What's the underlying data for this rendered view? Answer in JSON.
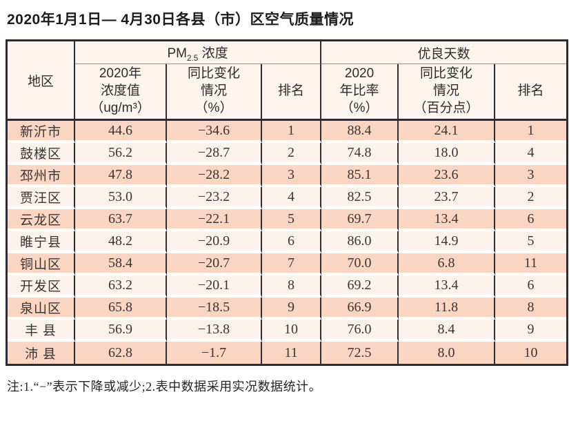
{
  "title": "2020年1月1日— 4月30日各县（市）区空气质量情况",
  "table": {
    "header": {
      "region": "地区",
      "pm_group": {
        "prefix": "PM",
        "subscript": "2.5",
        "suffix": " 浓度"
      },
      "good_group": "优良天数",
      "subheaders": {
        "pm_value": "2020年\n浓度值\n（ug/m³）",
        "pm_change": "同比变化\n情况\n（%）",
        "pm_rank": "排名",
        "good_ratio": "2020\n年比率\n（%）",
        "good_change": "同比变化\n情况\n（百分点）",
        "good_rank": "排名"
      }
    },
    "rows": [
      {
        "region": "新沂市",
        "pm_value": "44.6",
        "pm_change": "−34.6",
        "pm_rank": "1",
        "good_ratio": "88.4",
        "good_change": "24.1",
        "good_rank": "1"
      },
      {
        "region": "鼓楼区",
        "pm_value": "56.2",
        "pm_change": "−28.7",
        "pm_rank": "2",
        "good_ratio": "74.8",
        "good_change": "18.0",
        "good_rank": "4"
      },
      {
        "region": "邳州市",
        "pm_value": "47.8",
        "pm_change": "−28.2",
        "pm_rank": "3",
        "good_ratio": "85.1",
        "good_change": "23.6",
        "good_rank": "3"
      },
      {
        "region": "贾汪区",
        "pm_value": "53.0",
        "pm_change": "−23.2",
        "pm_rank": "4",
        "good_ratio": "82.5",
        "good_change": "23.7",
        "good_rank": "2"
      },
      {
        "region": "云龙区",
        "pm_value": "63.7",
        "pm_change": "−22.1",
        "pm_rank": "5",
        "good_ratio": "69.7",
        "good_change": "13.4",
        "good_rank": "6"
      },
      {
        "region": "睢宁县",
        "pm_value": "48.2",
        "pm_change": "−20.9",
        "pm_rank": "6",
        "good_ratio": "86.0",
        "good_change": "14.9",
        "good_rank": "5"
      },
      {
        "region": "铜山区",
        "pm_value": "58.4",
        "pm_change": "−20.7",
        "pm_rank": "7",
        "good_ratio": "70.0",
        "good_change": "6.8",
        "good_rank": "11"
      },
      {
        "region": "开发区",
        "pm_value": "63.2",
        "pm_change": "−20.1",
        "pm_rank": "8",
        "good_ratio": "69.2",
        "good_change": "13.4",
        "good_rank": "6"
      },
      {
        "region": "泉山区",
        "pm_value": "65.8",
        "pm_change": "−18.5",
        "pm_rank": "9",
        "good_ratio": "66.9",
        "good_change": "11.8",
        "good_rank": "8"
      },
      {
        "region": "丰 县",
        "pm_value": "56.9",
        "pm_change": "−13.8",
        "pm_rank": "10",
        "good_ratio": "76.0",
        "good_change": "8.4",
        "good_rank": "9"
      },
      {
        "region": "沛 县",
        "pm_value": "62.8",
        "pm_change": "−1.7",
        "pm_rank": "11",
        "good_ratio": "72.5",
        "good_change": "8.0",
        "good_rank": "10"
      }
    ]
  },
  "note": "注:1.“−”表示下降或减少;2.表中数据采用实况数据统计。",
  "colors": {
    "row_salmon": "#fad5c2",
    "row_light": "#fdf2eb",
    "header_bg": "#fdf4ee",
    "border_dark": "#2e2a31",
    "header_divider_gray": "#97908a"
  }
}
